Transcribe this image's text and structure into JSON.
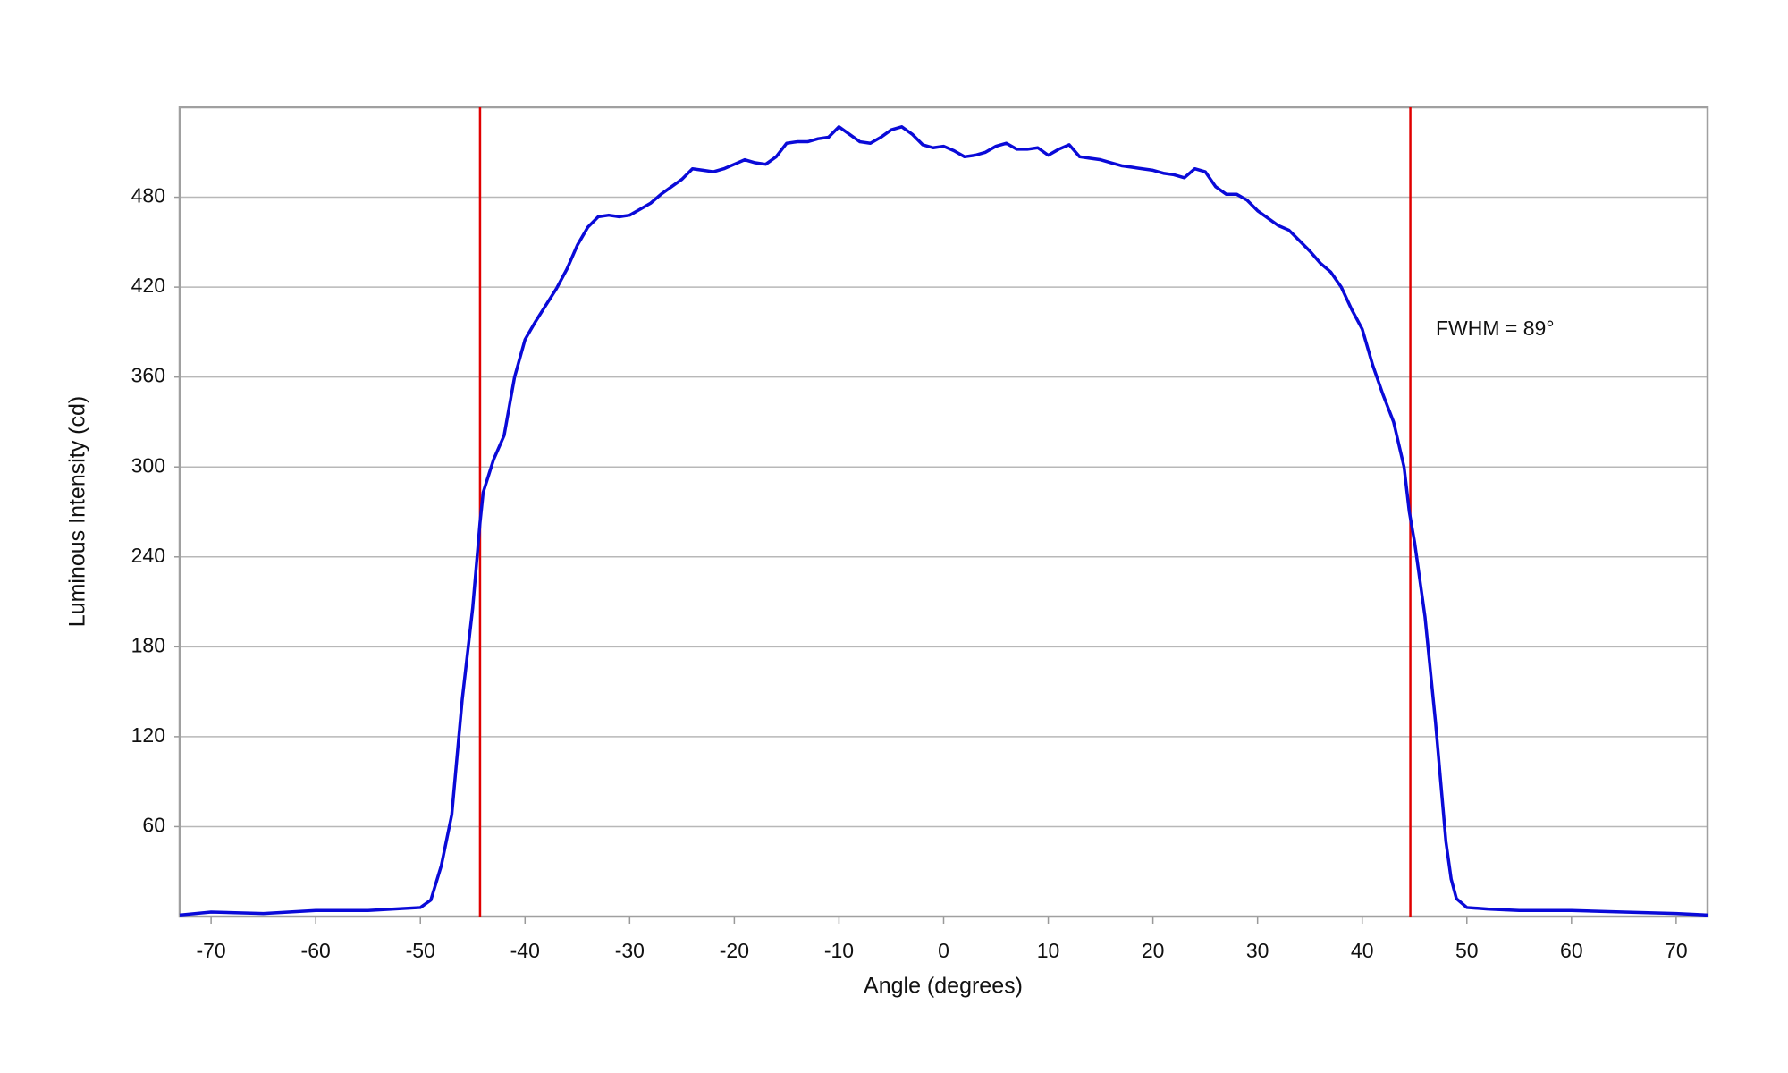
{
  "chart_data": {
    "type": "line",
    "x_label": "Angle (degrees)",
    "y_label": "Luminous Intensity (cd)",
    "annotation": "FWHM = 89°",
    "xlim": [
      -73,
      73
    ],
    "ylim": [
      0,
      540
    ],
    "xticks": [
      -70,
      -60,
      -50,
      -40,
      -30,
      -20,
      -10,
      0,
      10,
      20,
      30,
      40,
      50,
      60,
      70
    ],
    "yticks": [
      60,
      120,
      180,
      240,
      300,
      360,
      420,
      480
    ],
    "grid": true,
    "vlines": [
      {
        "x": -44.3,
        "color": "#e00000"
      },
      {
        "x": 44.6,
        "color": "#e00000"
      }
    ],
    "x": [
      -73,
      -70,
      -65,
      -60,
      -55,
      -50,
      -49,
      -48,
      -47,
      -46,
      -45,
      -44.3,
      -44,
      -43,
      -42,
      -41,
      -40,
      -39,
      -38,
      -37,
      -36,
      -35,
      -34,
      -33,
      -32,
      -31,
      -30,
      -29,
      -28,
      -27,
      -26,
      -25,
      -24,
      -23,
      -22,
      -21,
      -20,
      -19,
      -18,
      -17,
      -16,
      -15,
      -14,
      -13,
      -12,
      -11,
      -10,
      -9,
      -8,
      -7,
      -6,
      -5,
      -4,
      -3,
      -2,
      -1,
      0,
      1,
      2,
      3,
      4,
      5,
      6,
      7,
      8,
      9,
      10,
      11,
      12,
      13,
      14,
      15,
      16,
      17,
      18,
      19,
      20,
      21,
      22,
      23,
      24,
      25,
      26,
      27,
      28,
      29,
      30,
      31,
      32,
      33,
      34,
      35,
      36,
      37,
      38,
      39,
      40,
      41,
      42,
      43,
      44,
      44.5,
      45,
      46,
      47,
      48,
      48.5,
      49,
      50,
      52,
      55,
      60,
      65,
      70,
      73
    ],
    "series": [
      {
        "name": "Luminous Intensity",
        "color": "#0a0ad8",
        "values": [
          1,
          3,
          2,
          4,
          4,
          6,
          11,
          34,
          68,
          145,
          206,
          263,
          283,
          305,
          321,
          360,
          385,
          397,
          408,
          419,
          432,
          448,
          460,
          467,
          468,
          467,
          468,
          472,
          476,
          482,
          487,
          492,
          499,
          498,
          497,
          499,
          502,
          505,
          503,
          502,
          507,
          516,
          517,
          517,
          519,
          520,
          527,
          522,
          517,
          516,
          520,
          525,
          527,
          522,
          515,
          513,
          514,
          511,
          507,
          508,
          510,
          514,
          516,
          512,
          512,
          513,
          508,
          512,
          515,
          507,
          506,
          505,
          503,
          501,
          500,
          499,
          498,
          496,
          495,
          493,
          499,
          497,
          487,
          482,
          482,
          478,
          471,
          466,
          461,
          458,
          451,
          444,
          436,
          430,
          420,
          405,
          392,
          368,
          348,
          330,
          300,
          270,
          250,
          200,
          130,
          50,
          25,
          12,
          6,
          5,
          4,
          4,
          3,
          2,
          1
        ]
      }
    ]
  }
}
